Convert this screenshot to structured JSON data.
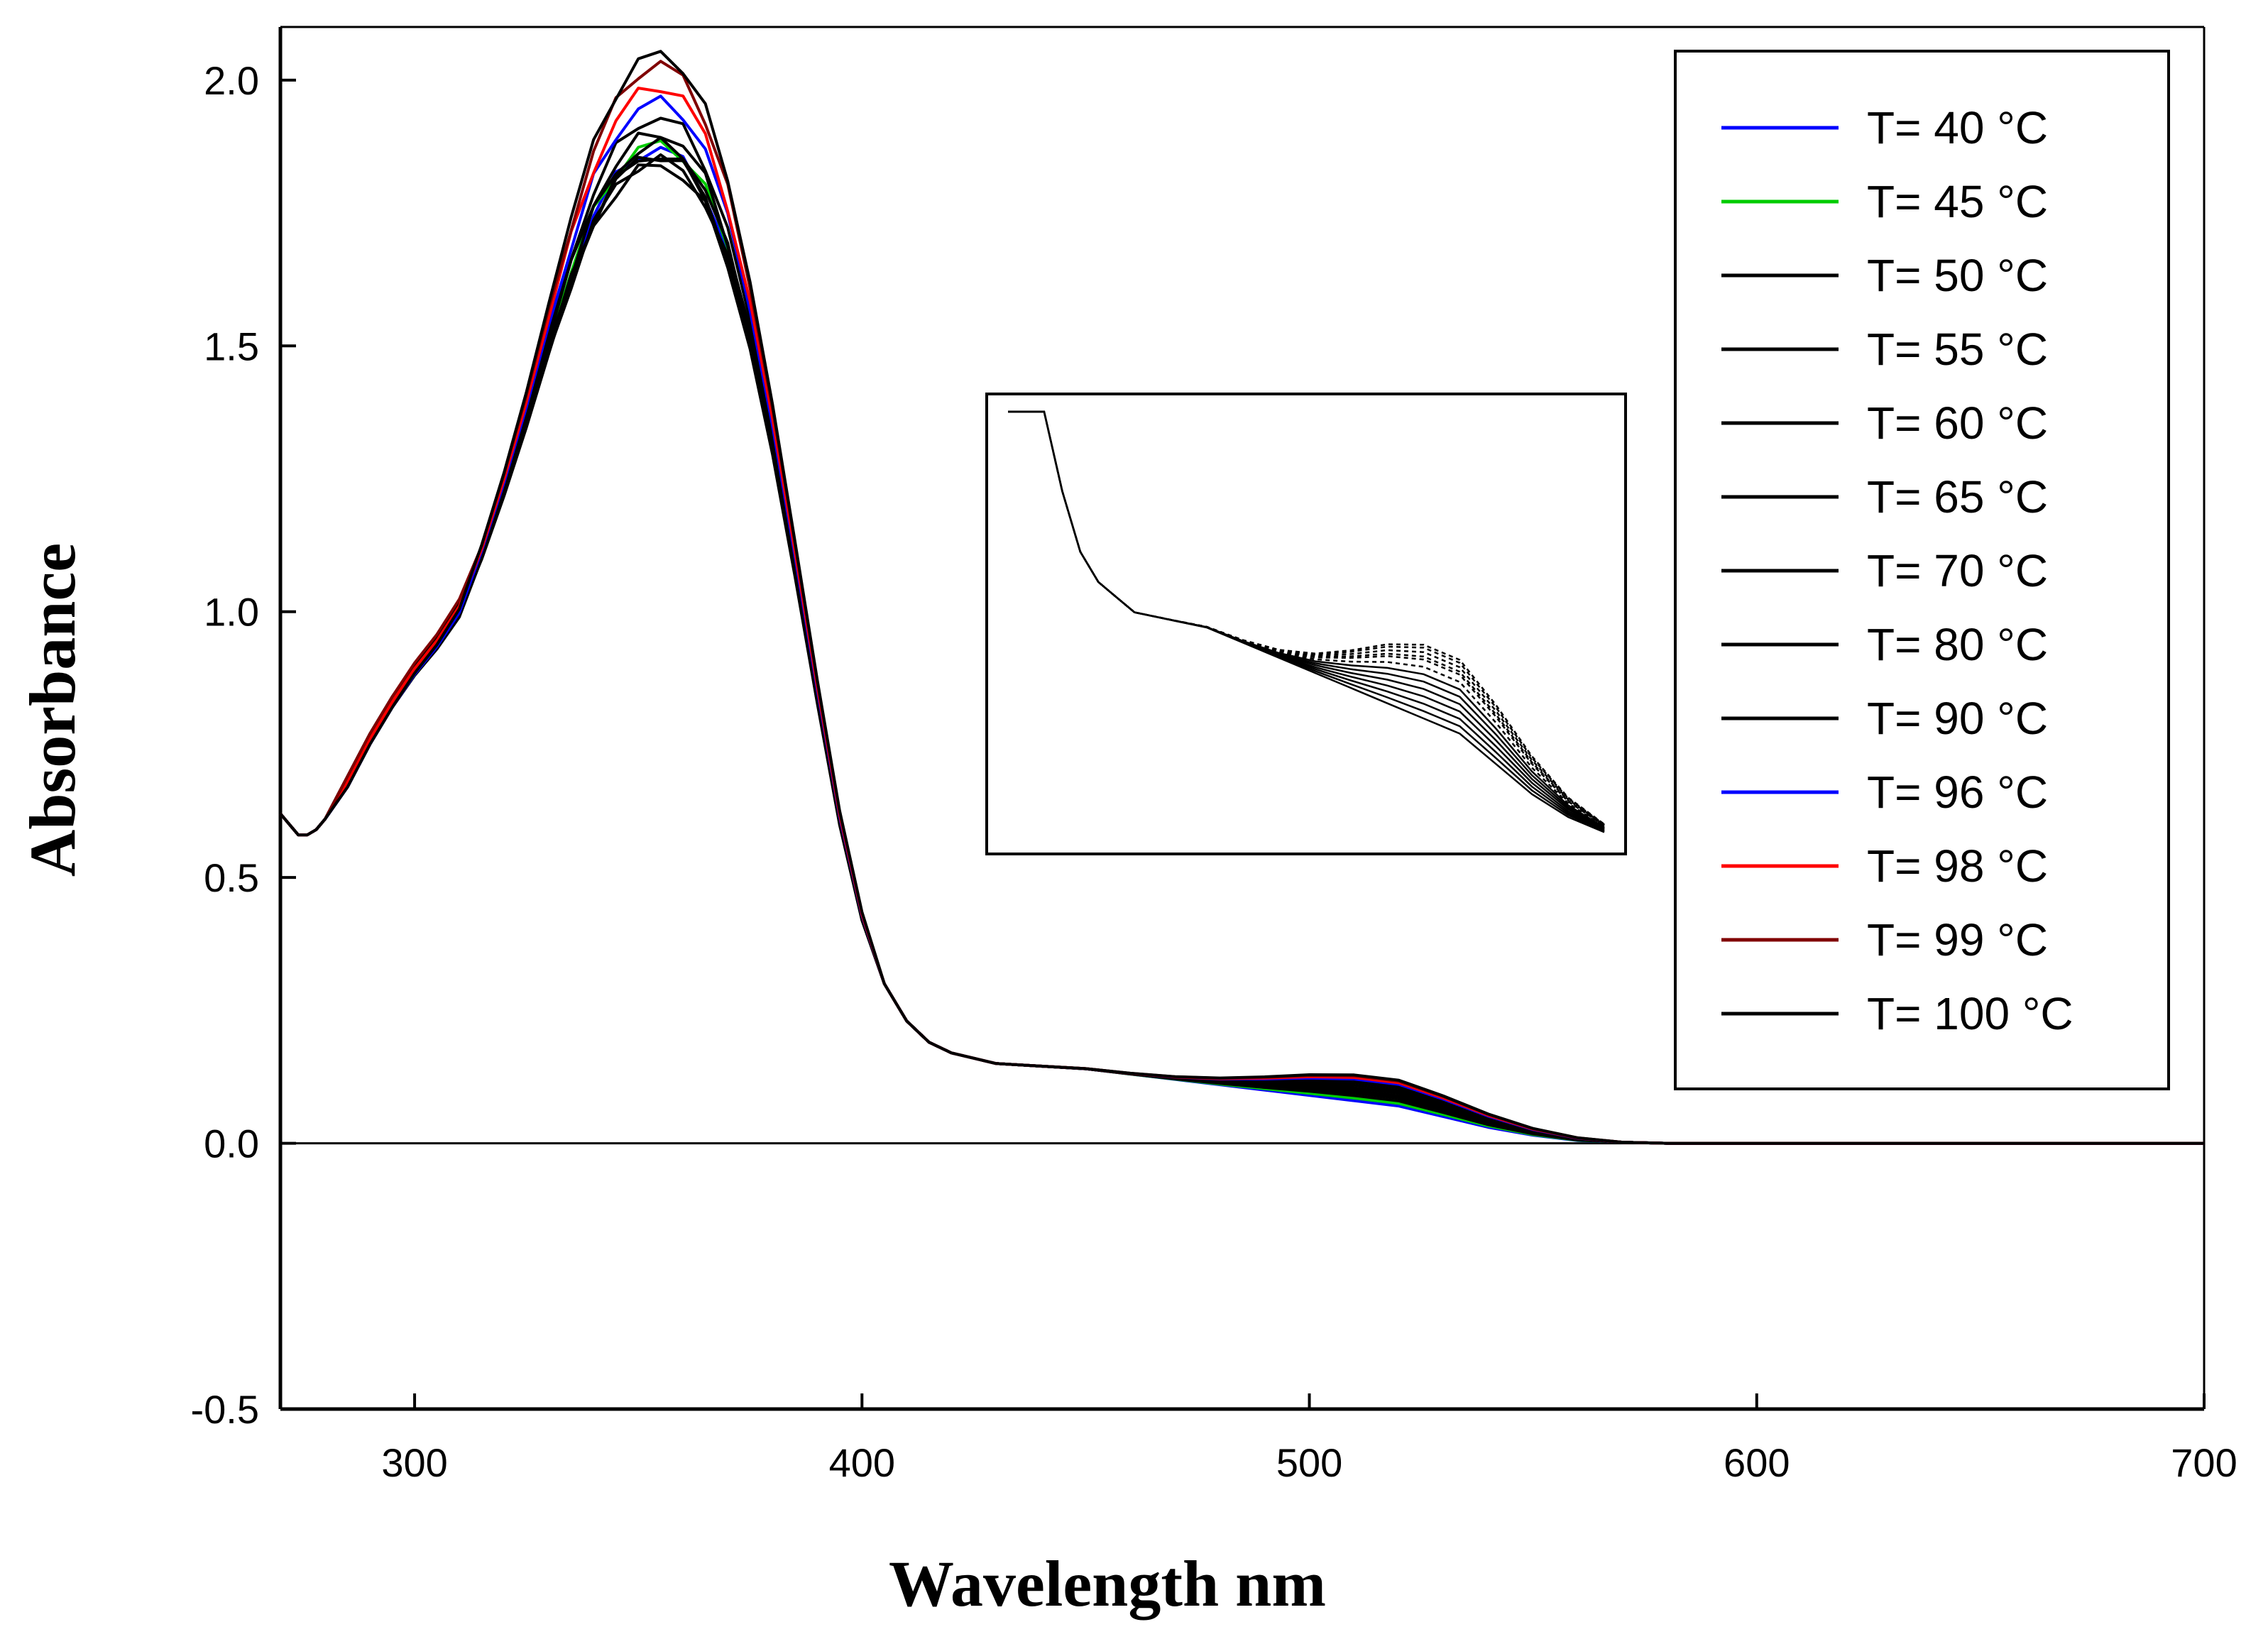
{
  "chart_data": {
    "type": "line",
    "title": "",
    "xlabel": "Wavelength nm",
    "ylabel": "Absorbance",
    "xlim": [
      270,
      700
    ],
    "ylim": [
      -0.5,
      2.1
    ],
    "xticks": [
      300,
      400,
      500,
      600,
      700
    ],
    "xtick_labels": [
      "300",
      "400",
      "500",
      "600",
      "700"
    ],
    "yticks": [
      -0.5,
      0.0,
      0.5,
      1.0,
      1.5,
      2.0
    ],
    "ytick_labels": [
      "-0.5",
      "0.0",
      "0.5",
      "1.0",
      "1.5",
      "2.0"
    ],
    "grid": false,
    "legend_position": "top-right",
    "base_curve": {
      "x": [
        270,
        272,
        274,
        276,
        278,
        280,
        285,
        290,
        295,
        300,
        305,
        310,
        315,
        320,
        325,
        330,
        335,
        340,
        345,
        350,
        355,
        360,
        365,
        370,
        375,
        380,
        385,
        390,
        395,
        400,
        405,
        410,
        415,
        420,
        425,
        430,
        440,
        450,
        460,
        470,
        480,
        490,
        500,
        510,
        520,
        530,
        540,
        550,
        560,
        570,
        580,
        600,
        650,
        700
      ],
      "y": [
        0.62,
        0.6,
        0.58,
        0.58,
        0.59,
        0.61,
        0.68,
        0.76,
        0.83,
        0.89,
        0.94,
        1.0,
        1.1,
        1.22,
        1.35,
        1.49,
        1.62,
        1.73,
        1.8,
        1.84,
        1.85,
        1.83,
        1.77,
        1.66,
        1.5,
        1.3,
        1.07,
        0.83,
        0.6,
        0.42,
        0.3,
        0.23,
        0.19,
        0.17,
        0.16,
        0.15,
        0.145,
        0.14,
        0.13,
        0.12,
        0.11,
        0.1,
        0.09,
        0.08,
        0.07,
        0.05,
        0.03,
        0.015,
        0.005,
        0.002,
        0.0,
        0.0,
        0.0,
        0.0
      ]
    },
    "series": [
      {
        "name": "T= 40 °C",
        "color": "#0000ff",
        "peak": 1.87,
        "shoulder": 0.0
      },
      {
        "name": "T= 45 °C",
        "color": "#00cc00",
        "peak": 1.88,
        "shoulder": 0.005
      },
      {
        "name": "T= 50 °C",
        "color": "#000000",
        "peak": 1.86,
        "shoulder": 0.01
      },
      {
        "name": "T= 55 °C",
        "color": "#000000",
        "peak": 1.85,
        "shoulder": 0.015
      },
      {
        "name": "T= 60 °C",
        "color": "#000000",
        "peak": 1.84,
        "shoulder": 0.02
      },
      {
        "name": "T= 65 °C",
        "color": "#000000",
        "peak": 1.86,
        "shoulder": 0.025
      },
      {
        "name": "T= 70 °C",
        "color": "#000000",
        "peak": 1.88,
        "shoulder": 0.03
      },
      {
        "name": "T= 80 °C",
        "color": "#000000",
        "peak": 1.9,
        "shoulder": 0.035
      },
      {
        "name": "T= 90 °C",
        "color": "#000000",
        "peak": 1.93,
        "shoulder": 0.04
      },
      {
        "name": "T= 96 °C",
        "color": "#0000ff",
        "peak": 1.96,
        "shoulder": 0.042
      },
      {
        "name": "T= 98 °C",
        "color": "#ff0000",
        "peak": 1.99,
        "shoulder": 0.045
      },
      {
        "name": "T= 99 °C",
        "color": "#800000",
        "peak": 2.03,
        "shoulder": 0.048
      },
      {
        "name": "T= 100 °C",
        "color": "#000000",
        "peak": 2.05,
        "shoulder": 0.05
      }
    ],
    "inset": {
      "description_note": "zoomed view of 400-560 nm shoulder region",
      "xlim": [
        395,
        560
      ],
      "ylim": [
        0.0,
        0.28
      ]
    }
  }
}
